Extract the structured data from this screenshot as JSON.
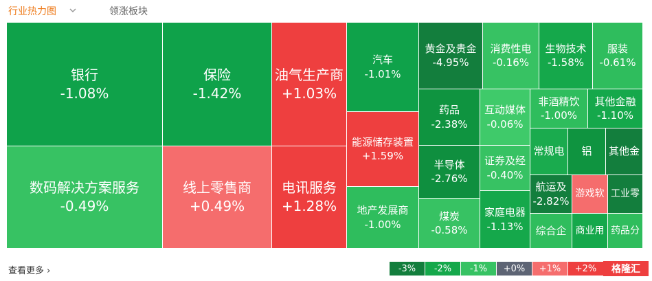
{
  "header": {
    "tabs": [
      "行业热力图",
      "领涨板块"
    ]
  },
  "tiles": [
    {
      "name": "银行",
      "change": "-1.08%",
      "color": "#0fa24a"
    },
    {
      "name": "保险",
      "change": "-1.42%",
      "color": "#0fa24a"
    },
    {
      "name": "油气生产商",
      "change": "+1.03%",
      "color": "#ee3f3f"
    },
    {
      "name": "汽车",
      "change": "-1.01%",
      "color": "#0fa24a"
    },
    {
      "name": "黄金及贵金",
      "change": "-4.95%",
      "color": "#137e3d"
    },
    {
      "name": "消费性电",
      "change": "-0.16%",
      "color": "#37c263"
    },
    {
      "name": "生物技术",
      "change": "-1.58%",
      "color": "#15a84b"
    },
    {
      "name": "服装",
      "change": "-0.61%",
      "color": "#2fbd5d"
    },
    {
      "name": "数码解决方案服务",
      "change": "-0.49%",
      "color": "#37c263"
    },
    {
      "name": "线上零售商",
      "change": "+0.49%",
      "color": "#f56d6d"
    },
    {
      "name": "电讯服务",
      "change": "+1.28%",
      "color": "#ee3f3f"
    },
    {
      "name": "能源储存装置",
      "change": "+1.59%",
      "color": "#ee3f3f"
    },
    {
      "name": "地产发展商",
      "change": "-1.00%",
      "color": "#2fbd5d"
    },
    {
      "name": "药品",
      "change": "-2.38%",
      "color": "#0f9440"
    },
    {
      "name": "半导体",
      "change": "-2.76%",
      "color": "#0f8f3f"
    },
    {
      "name": "煤炭",
      "change": "-0.58%",
      "color": "#37c263"
    },
    {
      "name": "互动媒体",
      "change": "-0.06%",
      "color": "#3fca6a"
    },
    {
      "name": "证券及经",
      "change": "-0.40%",
      "color": "#37c263"
    },
    {
      "name": "家庭电器",
      "change": "-1.13%",
      "color": "#15a84b"
    },
    {
      "name": "非酒精饮",
      "change": "-1.00%",
      "color": "#2fbd5d"
    },
    {
      "name": "其他金融",
      "change": "-1.10%",
      "color": "#15a84b"
    },
    {
      "name": "常规电",
      "color": "#1aab4e"
    },
    {
      "name": "铝",
      "color": "#0f9440"
    },
    {
      "name": "其他金",
      "color": "#137e3d"
    },
    {
      "name": "航运及",
      "change": "-2.82%",
      "color": "#137e3d"
    },
    {
      "name": "游戏软",
      "color": "#f56d6d"
    },
    {
      "name": "工业零",
      "color": "#137e3d"
    },
    {
      "name": "综合企",
      "color": "#2fbd5d"
    },
    {
      "name": "商业用",
      "color": "#15a84b"
    },
    {
      "name": "药品分",
      "color": "#2fbd5d"
    }
  ],
  "footer": {
    "more": "查看更多",
    "legend": [
      {
        "label": "-3%",
        "color": "#137e3d"
      },
      {
        "label": "-2%",
        "color": "#15a84b"
      },
      {
        "label": "-1%",
        "color": "#37c263"
      },
      {
        "label": "+0%",
        "color": "#5d6474"
      },
      {
        "label": "+1%",
        "color": "#f56d6d"
      },
      {
        "label": "+2%",
        "color": "#ee3f3f"
      }
    ],
    "logo": "格隆汇"
  }
}
